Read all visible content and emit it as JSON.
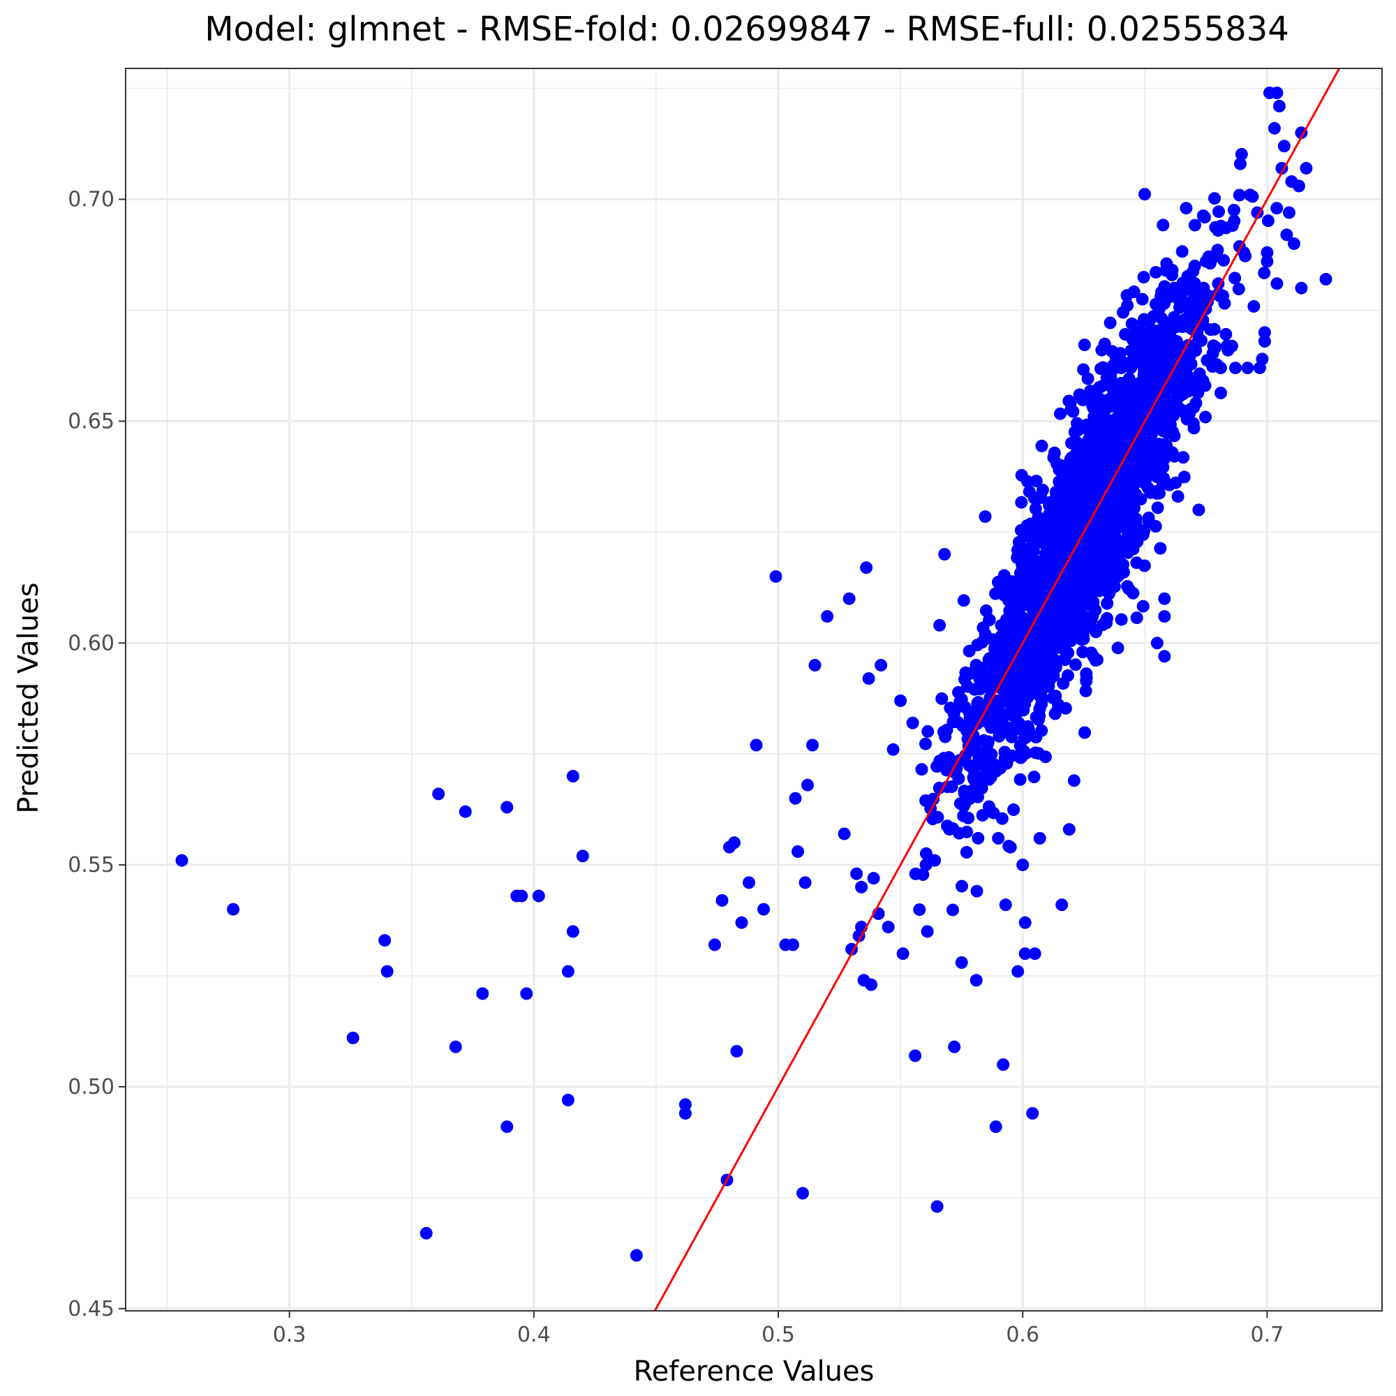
{
  "chart_data": {
    "type": "scatter",
    "title": "Model: glmnet - RMSE-fold: 0.02699847 - RMSE-full: 0.02555834",
    "xlabel": "Reference Values",
    "ylabel": "Predicted Values",
    "xlim": [
      0.233,
      0.747
    ],
    "ylim": [
      0.4495,
      0.7295
    ],
    "x_ticks": [
      0.3,
      0.4,
      0.5,
      0.6,
      0.7
    ],
    "x_tick_labels": [
      "0.3",
      "0.4",
      "0.5",
      "0.6",
      "0.7"
    ],
    "y_ticks": [
      0.45,
      0.5,
      0.55,
      0.6,
      0.65,
      0.7
    ],
    "y_tick_labels": [
      "0.45",
      "0.50",
      "0.55",
      "0.60",
      "0.65",
      "0.70"
    ],
    "grid": true,
    "point_color": "#0000ff",
    "line_color": "#ff0000",
    "reference_line": {
      "slope": 1,
      "intercept": 0
    },
    "approx_point_count": 2200,
    "dense_cloud": {
      "x_center": 0.625,
      "x_sd": 0.025,
      "x_min": 0.555,
      "x_max": 0.705,
      "residual_sd": 0.0135
    },
    "points": [
      [
        0.256,
        0.551
      ],
      [
        0.277,
        0.54
      ],
      [
        0.326,
        0.511
      ],
      [
        0.339,
        0.533
      ],
      [
        0.34,
        0.526
      ],
      [
        0.356,
        0.467
      ],
      [
        0.361,
        0.566
      ],
      [
        0.368,
        0.509
      ],
      [
        0.372,
        0.562
      ],
      [
        0.379,
        0.521
      ],
      [
        0.389,
        0.563
      ],
      [
        0.389,
        0.491
      ],
      [
        0.393,
        0.543
      ],
      [
        0.395,
        0.543
      ],
      [
        0.397,
        0.521
      ],
      [
        0.402,
        0.543
      ],
      [
        0.414,
        0.526
      ],
      [
        0.414,
        0.497
      ],
      [
        0.416,
        0.57
      ],
      [
        0.416,
        0.535
      ],
      [
        0.42,
        0.552
      ],
      [
        0.442,
        0.462
      ],
      [
        0.462,
        0.496
      ],
      [
        0.462,
        0.494
      ],
      [
        0.474,
        0.532
      ],
      [
        0.477,
        0.542
      ],
      [
        0.479,
        0.479
      ],
      [
        0.48,
        0.554
      ],
      [
        0.482,
        0.555
      ],
      [
        0.483,
        0.508
      ],
      [
        0.485,
        0.537
      ],
      [
        0.488,
        0.546
      ],
      [
        0.491,
        0.577
      ],
      [
        0.494,
        0.54
      ],
      [
        0.499,
        0.615
      ],
      [
        0.503,
        0.532
      ],
      [
        0.506,
        0.532
      ],
      [
        0.507,
        0.565
      ],
      [
        0.508,
        0.553
      ],
      [
        0.51,
        0.476
      ],
      [
        0.511,
        0.546
      ],
      [
        0.512,
        0.568
      ],
      [
        0.514,
        0.577
      ],
      [
        0.515,
        0.595
      ],
      [
        0.52,
        0.606
      ],
      [
        0.527,
        0.557
      ],
      [
        0.529,
        0.61
      ],
      [
        0.53,
        0.531
      ],
      [
        0.532,
        0.548
      ],
      [
        0.533,
        0.534
      ],
      [
        0.534,
        0.545
      ],
      [
        0.534,
        0.536
      ],
      [
        0.535,
        0.524
      ],
      [
        0.536,
        0.617
      ],
      [
        0.537,
        0.592
      ],
      [
        0.538,
        0.523
      ],
      [
        0.539,
        0.547
      ],
      [
        0.541,
        0.539
      ],
      [
        0.542,
        0.595
      ],
      [
        0.545,
        0.536
      ],
      [
        0.547,
        0.576
      ],
      [
        0.55,
        0.587
      ],
      [
        0.551,
        0.53
      ],
      [
        0.555,
        0.582
      ],
      [
        0.556,
        0.507
      ],
      [
        0.561,
        0.535
      ],
      [
        0.564,
        0.551
      ],
      [
        0.565,
        0.473
      ],
      [
        0.566,
        0.604
      ],
      [
        0.568,
        0.62
      ],
      [
        0.572,
        0.509
      ],
      [
        0.575,
        0.528
      ],
      [
        0.581,
        0.524
      ],
      [
        0.589,
        0.491
      ],
      [
        0.592,
        0.505
      ],
      [
        0.59,
        0.556
      ],
      [
        0.593,
        0.541
      ],
      [
        0.595,
        0.554
      ],
      [
        0.598,
        0.526
      ],
      [
        0.6,
        0.55
      ],
      [
        0.601,
        0.537
      ],
      [
        0.601,
        0.53
      ],
      [
        0.604,
        0.494
      ],
      [
        0.605,
        0.53
      ],
      [
        0.607,
        0.556
      ],
      [
        0.616,
        0.541
      ],
      [
        0.619,
        0.558
      ],
      [
        0.621,
        0.569
      ],
      [
        0.658,
        0.61
      ],
      [
        0.658,
        0.606
      ],
      [
        0.655,
        0.6
      ],
      [
        0.658,
        0.597
      ],
      [
        0.672,
        0.63
      ],
      [
        0.681,
        0.694
      ],
      [
        0.689,
        0.708
      ],
      [
        0.692,
        0.662
      ],
      [
        0.693,
        0.701
      ],
      [
        0.696,
        0.697
      ],
      [
        0.698,
        0.664
      ],
      [
        0.699,
        0.67
      ],
      [
        0.7,
        0.688
      ],
      [
        0.7,
        0.686
      ],
      [
        0.701,
        0.724
      ],
      [
        0.703,
        0.716
      ],
      [
        0.704,
        0.724
      ],
      [
        0.704,
        0.681
      ],
      [
        0.705,
        0.721
      ],
      [
        0.706,
        0.707
      ],
      [
        0.707,
        0.712
      ],
      [
        0.708,
        0.692
      ],
      [
        0.709,
        0.697
      ],
      [
        0.71,
        0.704
      ],
      [
        0.711,
        0.69
      ],
      [
        0.713,
        0.703
      ],
      [
        0.714,
        0.715
      ],
      [
        0.714,
        0.68
      ],
      [
        0.716,
        0.707
      ],
      [
        0.724,
        0.682
      ],
      [
        0.699,
        0.668
      ],
      [
        0.697,
        0.662
      ],
      [
        0.687,
        0.662
      ],
      [
        0.684,
        0.666
      ],
      [
        0.68,
        0.681
      ],
      [
        0.675,
        0.686
      ],
      [
        0.674,
        0.68
      ],
      [
        0.667,
        0.676
      ],
      [
        0.662,
        0.68
      ],
      [
        0.66,
        0.678
      ],
      [
        0.678,
        0.667
      ],
      [
        0.681,
        0.662
      ],
      [
        0.665,
        0.66
      ],
      [
        0.663,
        0.668
      ]
    ]
  }
}
